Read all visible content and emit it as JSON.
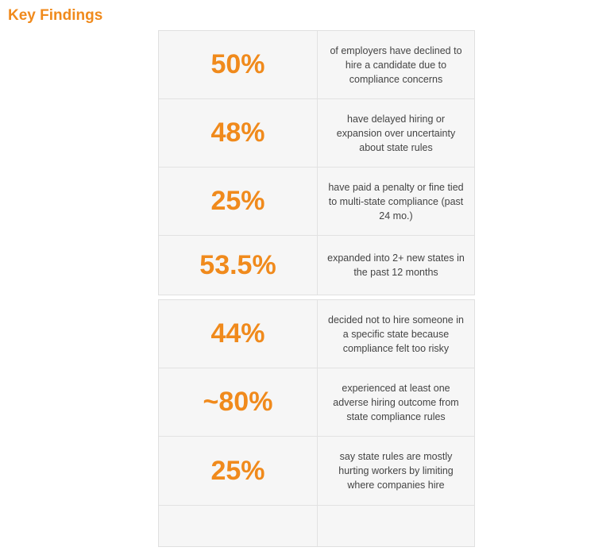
{
  "title": "Key Findings",
  "colors": {
    "accent": "#f08a1c",
    "cell_bg": "#f6f6f6",
    "border": "#e2e2e2"
  },
  "block1": [
    {
      "stat": "50%",
      "text": "of employers have declined to hire a candidate due to compliance concerns"
    },
    {
      "stat": "48%",
      "text": "have delayed hiring or expansion over uncertainty about state rules"
    },
    {
      "stat": "25%",
      "text": "have paid a penalty or fine tied to multi-state compliance (past 24 mo.)"
    },
    {
      "stat": "53.5%",
      "text": "expanded into 2+ new states in the past 12 months"
    }
  ],
  "block2": [
    {
      "stat": "44%",
      "text": "decided not to hire someone in a specific state because compliance felt too risky"
    },
    {
      "stat": "~80%",
      "text": "experienced at least one adverse hiring outcome from state compliance rules"
    },
    {
      "stat": "25%",
      "text": "say state rules are mostly hurting workers by limiting where companies hire"
    },
    {
      "stat": "",
      "text": ""
    }
  ]
}
